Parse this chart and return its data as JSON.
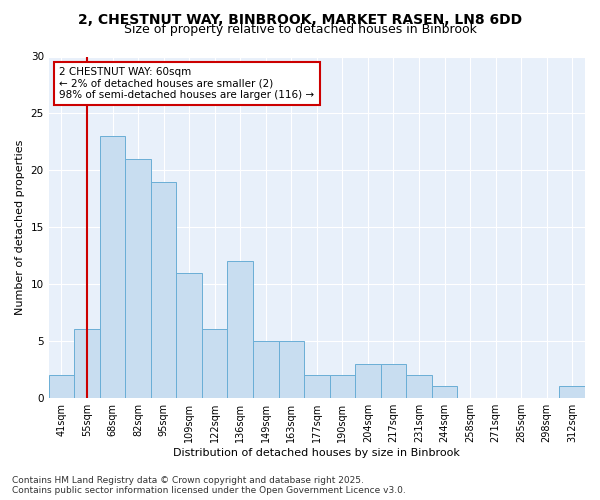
{
  "title_line1": "2, CHESTNUT WAY, BINBROOK, MARKET RASEN, LN8 6DD",
  "title_line2": "Size of property relative to detached houses in Binbrook",
  "xlabel": "Distribution of detached houses by size in Binbrook",
  "ylabel": "Number of detached properties",
  "bar_color": "#c8ddf0",
  "bar_edge_color": "#6aaed6",
  "categories": [
    "41sqm",
    "55sqm",
    "68sqm",
    "82sqm",
    "95sqm",
    "109sqm",
    "122sqm",
    "136sqm",
    "149sqm",
    "163sqm",
    "177sqm",
    "190sqm",
    "204sqm",
    "217sqm",
    "231sqm",
    "244sqm",
    "258sqm",
    "271sqm",
    "285sqm",
    "298sqm",
    "312sqm"
  ],
  "values": [
    2,
    6,
    23,
    21,
    19,
    11,
    6,
    12,
    5,
    5,
    2,
    2,
    3,
    3,
    2,
    1,
    0,
    0,
    0,
    0,
    1
  ],
  "ylim": [
    0,
    30
  ],
  "yticks": [
    0,
    5,
    10,
    15,
    20,
    25,
    30
  ],
  "vline_x": 1.5,
  "vline_color": "#cc0000",
  "annotation_title": "2 CHESTNUT WAY: 60sqm",
  "annotation_line1": "← 2% of detached houses are smaller (2)",
  "annotation_line2": "98% of semi-detached houses are larger (116) →",
  "annotation_box_color": "#cc0000",
  "footer_line1": "Contains HM Land Registry data © Crown copyright and database right 2025.",
  "footer_line2": "Contains public sector information licensed under the Open Government Licence v3.0.",
  "background_color": "#ffffff",
  "plot_bg_color": "#e8f0fa",
  "grid_color": "#ffffff",
  "title_fontsize": 10,
  "subtitle_fontsize": 9,
  "axis_label_fontsize": 8,
  "tick_fontsize": 7,
  "annotation_fontsize": 7.5,
  "footer_fontsize": 6.5
}
